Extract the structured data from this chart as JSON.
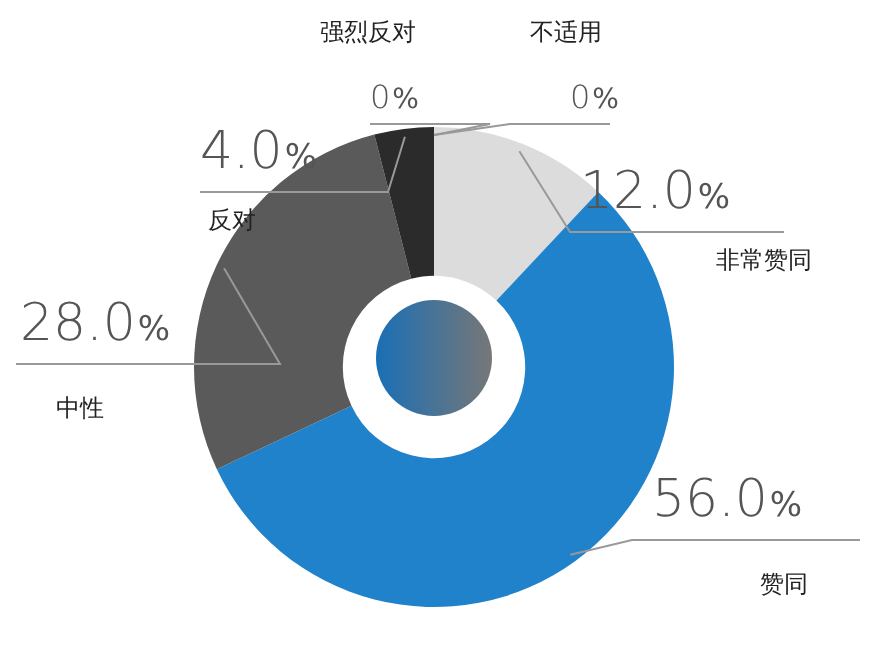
{
  "chart_data": {
    "type": "donut",
    "categories": [
      "非常赞同",
      "赞同",
      "中性",
      "反对",
      "强烈反对",
      "不适用"
    ],
    "values": [
      12,
      56,
      28,
      4,
      0,
      0
    ],
    "value_labels": [
      "12.0%",
      "56.0%",
      "28.0%",
      "4.0%",
      "0%",
      "0%"
    ],
    "colors": [
      "#dcdcdc",
      "#2182cc",
      "#5a5a5a",
      "#2b2b2b",
      "#444444",
      "#bbbbbb"
    ],
    "legend": false
  }
}
